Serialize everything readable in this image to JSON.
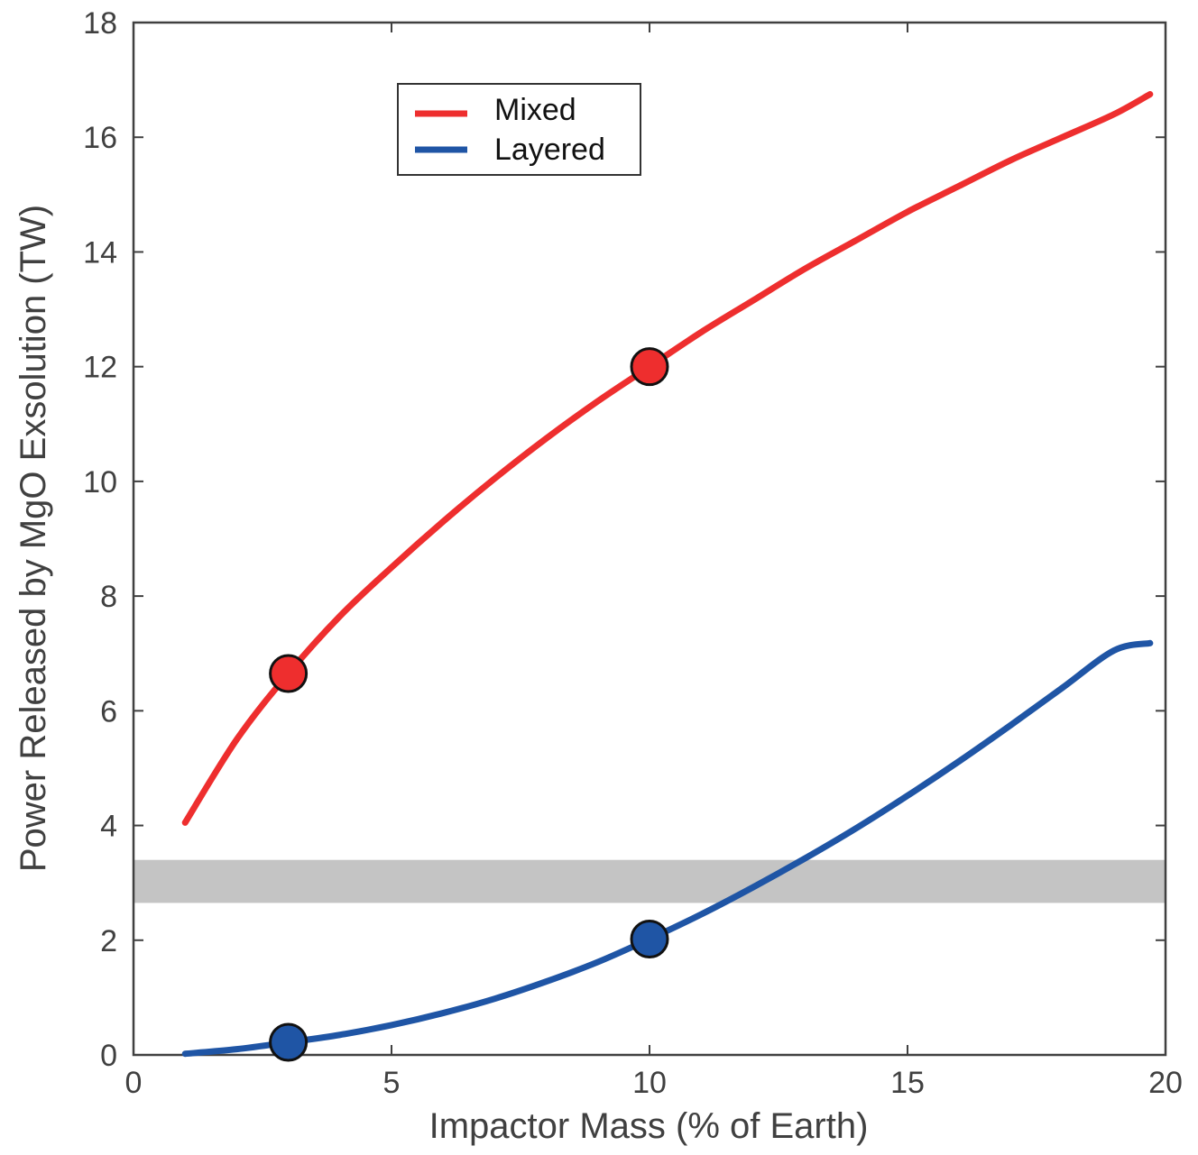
{
  "chart_data": {
    "type": "line",
    "xlabel": "Impactor Mass (% of Earth)",
    "ylabel": "Power Released by MgO Exsolution (TW)",
    "xlim": [
      0,
      20
    ],
    "ylim": [
      0,
      18
    ],
    "xticks": [
      0,
      5,
      10,
      15,
      20
    ],
    "yticks": [
      0,
      2,
      4,
      6,
      8,
      10,
      12,
      14,
      16,
      18
    ],
    "grid": false,
    "legend_position": "top-left",
    "band": {
      "y_min": 2.65,
      "y_max": 3.4,
      "color": "#c4c4c4"
    },
    "series": [
      {
        "name": "Mixed",
        "color": "#ee2e2e",
        "x": [
          1,
          2,
          3,
          4,
          5,
          6,
          7,
          8,
          9,
          10,
          11,
          12,
          13,
          14,
          15,
          16,
          17,
          18,
          19,
          19.7
        ],
        "y": [
          4.05,
          5.5,
          6.65,
          7.65,
          8.5,
          9.3,
          10.05,
          10.75,
          11.4,
          12.0,
          12.6,
          13.15,
          13.7,
          14.2,
          14.7,
          15.15,
          15.6,
          16.0,
          16.4,
          16.75
        ],
        "markers": [
          {
            "x": 3,
            "y": 6.65
          },
          {
            "x": 10,
            "y": 12.0
          }
        ]
      },
      {
        "name": "Layered",
        "color": "#1f55a5",
        "x": [
          1,
          2,
          3,
          4,
          5,
          6,
          7,
          8,
          9,
          10,
          11,
          12,
          13,
          14,
          15,
          16,
          17,
          18,
          19,
          19.7
        ],
        "y": [
          0.02,
          0.1,
          0.22,
          0.35,
          0.52,
          0.73,
          0.98,
          1.28,
          1.62,
          2.02,
          2.45,
          2.92,
          3.42,
          3.95,
          4.52,
          5.12,
          5.75,
          6.4,
          7.05,
          7.18
        ],
        "markers": [
          {
            "x": 3,
            "y": 0.22
          },
          {
            "x": 10,
            "y": 2.02
          }
        ]
      }
    ]
  }
}
